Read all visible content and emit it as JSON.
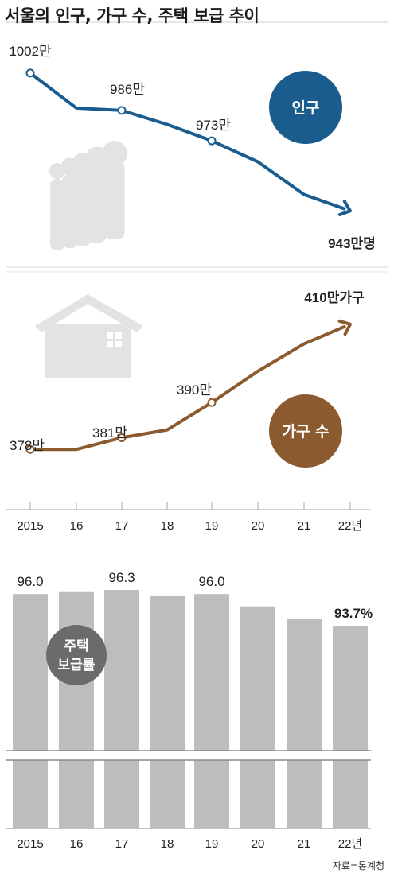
{
  "title": "서울의 인구, 가구 수, 주택 보급 추이",
  "source": "자료=통계청",
  "x_labels": [
    "2015",
    "16",
    "17",
    "18",
    "19",
    "20",
    "21",
    "22년"
  ],
  "colors": {
    "population": "#1a5c8e",
    "households": "#8b5a2e",
    "bar": "#bdbdbd",
    "badge_gray": "#6b6b6b",
    "icon": "#e3e3e3"
  },
  "icons": {
    "people": "people-silhouette-icon",
    "house": "house-icon"
  },
  "chart_data": [
    {
      "type": "line",
      "badge": "인구",
      "x": [
        "2015",
        "16",
        "17",
        "18",
        "19",
        "20",
        "21",
        "22년"
      ],
      "values": [
        1002,
        987,
        986,
        980,
        973,
        964,
        950,
        943
      ],
      "labels": [
        {
          "index": 0,
          "text": "1002만"
        },
        {
          "index": 2,
          "text": "986만"
        },
        {
          "index": 4,
          "text": "973만"
        },
        {
          "index": 7,
          "text": "943만명"
        }
      ],
      "marked_points": [
        0,
        2,
        4
      ],
      "ylim": [
        940,
        1004
      ]
    },
    {
      "type": "line",
      "badge": "가구 수",
      "x": [
        "2015",
        "16",
        "17",
        "18",
        "19",
        "20",
        "21",
        "22년"
      ],
      "values": [
        378,
        378,
        381,
        383,
        390,
        398,
        405,
        410
      ],
      "labels": [
        {
          "index": 0,
          "text": "378만"
        },
        {
          "index": 2,
          "text": "381만"
        },
        {
          "index": 4,
          "text": "390만"
        },
        {
          "index": 7,
          "text": "410만가구"
        }
      ],
      "marked_points": [
        0,
        2,
        4
      ],
      "ylim": [
        375,
        412
      ]
    },
    {
      "type": "bar",
      "badge": "주택\n보급률",
      "categories": [
        "2015",
        "16",
        "17",
        "18",
        "19",
        "20",
        "21",
        "22년"
      ],
      "values": [
        96.0,
        96.2,
        96.3,
        95.9,
        96.0,
        95.1,
        94.2,
        93.7
      ],
      "labels": [
        {
          "index": 0,
          "text": "96.0"
        },
        {
          "index": 2,
          "text": "96.3"
        },
        {
          "index": 4,
          "text": "96.0"
        },
        {
          "index": 7,
          "text": "93.7%"
        }
      ],
      "axis_break": true
    }
  ]
}
